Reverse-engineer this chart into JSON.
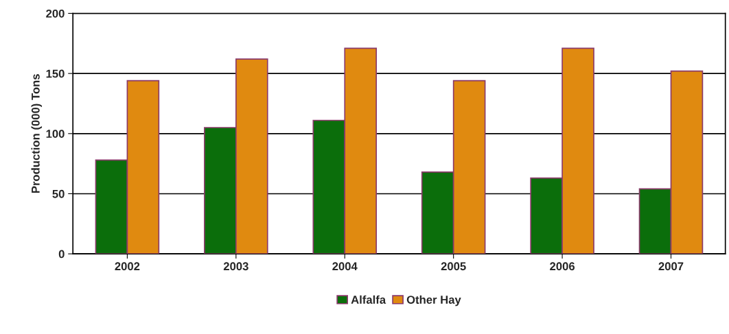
{
  "chart_data": {
    "type": "bar",
    "ylabel": "Production (000) Tons",
    "categories": [
      "2002",
      "2003",
      "2004",
      "2005",
      "2006",
      "2007"
    ],
    "series": [
      {
        "name": "Alfalfa",
        "color": "#0b6e0b",
        "values": [
          78,
          105,
          111,
          68,
          63,
          54
        ]
      },
      {
        "name": "Other Hay",
        "color": "#e08a10",
        "values": [
          144,
          162,
          171,
          144,
          171,
          152
        ]
      }
    ],
    "ylim": [
      0,
      200
    ],
    "yticks": [
      0,
      50,
      100,
      150,
      200
    ],
    "grid": "y",
    "legend": "bottom"
  }
}
